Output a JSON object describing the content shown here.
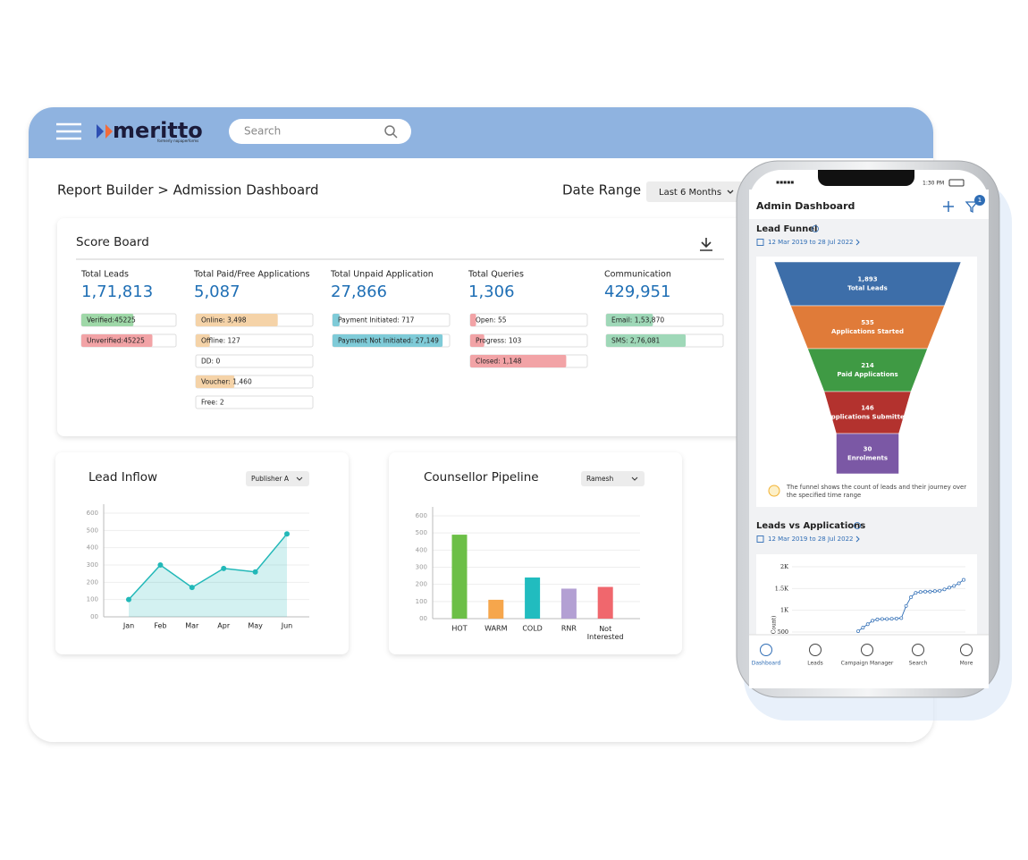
{
  "header": {
    "logo": "meritto",
    "logo_tagline": "formerly nopaperforms",
    "search_placeholder": "Search"
  },
  "breadcrumb": "Report Builder > Admission Dashboard",
  "date_range": {
    "label": "Date Range",
    "value": "Last 6 Months"
  },
  "score_board": {
    "title": "Score Board",
    "columns": [
      {
        "title": "Total Leads",
        "total": "1,71,813",
        "items": [
          {
            "label": "Verified:45225",
            "fill": 55,
            "color": "#9fd8a8"
          },
          {
            "label": "Unverified:45225",
            "fill": 75,
            "color": "#f2a3a6"
          }
        ]
      },
      {
        "title": "Total Paid/Free Applications",
        "total": "5,087",
        "items": [
          {
            "label": "Online: 3,498",
            "fill": 70,
            "color": "#f5d3a8"
          },
          {
            "label": "Offline: 127",
            "fill": 12,
            "color": "#f5d3a8"
          },
          {
            "label": "DD: 0",
            "fill": 0,
            "color": "#f5d3a8"
          },
          {
            "label": "Voucher: 1,460",
            "fill": 33,
            "color": "#f5d3a8"
          },
          {
            "label": "Free: 2",
            "fill": 0,
            "color": "#f5d3a8"
          }
        ]
      },
      {
        "title": "Total Unpaid Application",
        "total": "27,866",
        "items": [
          {
            "label": "Payment Initiated: 717",
            "fill": 6,
            "color": "#7fcbd8"
          },
          {
            "label": "Payment Not Initiated: 27,149",
            "fill": 94,
            "color": "#7fcbd8"
          }
        ]
      },
      {
        "title": "Total Queries",
        "total": "1,306",
        "items": [
          {
            "label": "Open: 55",
            "fill": 5,
            "color": "#f2a3a6"
          },
          {
            "label": "Progress: 103",
            "fill": 12,
            "color": "#f2a3a6"
          },
          {
            "label": "Closed: 1,148",
            "fill": 82,
            "color": "#f2a3a6"
          }
        ]
      },
      {
        "title": "Communication",
        "total": "429,951",
        "items": [
          {
            "label": "Email: 1,53,870",
            "fill": 40,
            "color": "#9fd8b8"
          },
          {
            "label": "SMS: 2,76,081",
            "fill": 68,
            "color": "#9fd8b8"
          }
        ]
      }
    ]
  },
  "chart_data": [
    {
      "type": "line",
      "title": "Lead Inflow",
      "filter": "Publisher A",
      "categories": [
        "Jan",
        "Feb",
        "Mar",
        "Apr",
        "May",
        "Jun"
      ],
      "values": [
        100,
        300,
        170,
        280,
        260,
        480
      ],
      "color": "#22b8b8",
      "ylim": [
        0,
        600
      ],
      "yticks": [
        {
          "value": 0,
          "label": "00"
        },
        100,
        200,
        300,
        400,
        500,
        600
      ],
      "grid": true
    },
    {
      "type": "bar",
      "title": "Counsellor Pipeline",
      "filter": "Ramesh",
      "categories": [
        "HOT",
        "WARM",
        "COLD",
        "RNR",
        "Not Interested"
      ],
      "values": [
        490,
        110,
        240,
        175,
        185
      ],
      "colors": [
        "#6cbf47",
        "#f6a64c",
        "#21bcbf",
        "#b3a0d3",
        "#f0676d"
      ],
      "ylim": [
        0,
        600
      ],
      "yticks": [
        {
          "value": 0,
          "label": "00"
        },
        100,
        200,
        300,
        400,
        500,
        600
      ],
      "grid": true
    },
    {
      "type": "funnel",
      "title": "Lead Funnel",
      "subtitle": "12 Mar 2019 to 28 Jul 2022",
      "categories": [
        "Total Leads",
        "Applications Started",
        "Paid Applications",
        "Applications Submitted",
        "Enrolments"
      ],
      "values": [
        1893,
        535,
        214,
        146,
        30
      ],
      "value_labels": [
        "1,893",
        "535",
        "214",
        "146",
        "30"
      ],
      "colors": [
        "#3d6ea9",
        "#e07b39",
        "#3f9a44",
        "#b3322e",
        "#7b58a5"
      ],
      "note": "The funnel shows the count of leads and their journey over the specified time range"
    },
    {
      "type": "line",
      "title": "Leads vs Applications",
      "subtitle": "12 Mar 2019 to 28 Jul 2022",
      "y_label": "(Count)",
      "values": [
        520,
        600,
        680,
        760,
        790,
        800,
        800,
        805,
        810,
        820,
        1100,
        1300,
        1400,
        1420,
        1430,
        1430,
        1440,
        1450,
        1480,
        1520,
        1560,
        1620,
        1700
      ],
      "color": "#2f6db5",
      "ylim": [
        500,
        2000
      ],
      "yticks": [
        500,
        {
          "value": 1000,
          "label": "1K"
        },
        {
          "value": 1500,
          "label": "1.5K"
        },
        {
          "value": 2000,
          "label": "2K"
        }
      ],
      "grid": true
    }
  ],
  "mobile": {
    "time": "1:30 PM",
    "title": "Admin Dashboard",
    "filter_badge": "1",
    "nav": [
      "Dashboard",
      "Leads",
      "Campaign Manager",
      "Search",
      "More"
    ]
  }
}
